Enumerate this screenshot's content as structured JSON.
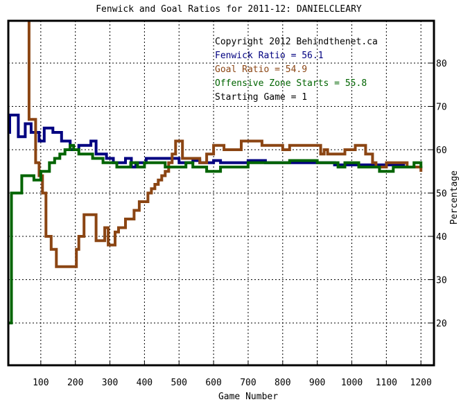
{
  "chart_data": {
    "type": "line",
    "title": "Fenwick and Goal Ratios for 2011-12: DANIELCLEARY",
    "xlabel": "Game Number",
    "ylabel": "Percentage",
    "xlim": [
      0,
      1230
    ],
    "ylim": [
      10,
      93
    ],
    "x_ticks": [
      100,
      200,
      300,
      400,
      500,
      600,
      700,
      800,
      900,
      1000,
      1100,
      1200
    ],
    "y_ticks": [
      20,
      30,
      40,
      50,
      60,
      70,
      80
    ],
    "grid": true,
    "legend_position": "top-right (inside plot)",
    "annotations": [
      {
        "text": "Copyright 2012 Behindthenet.ca",
        "color": "#000000"
      },
      {
        "text": "Fenwick Ratio = 56.1",
        "color": "#000080"
      },
      {
        "text": "Goal Ratio = 54.9",
        "color": "#8b4513"
      },
      {
        "text": "Offensive Zone Starts = 55.8",
        "color": "#006400"
      },
      {
        "text": "Starting Game = 1",
        "color": "#000000"
      }
    ],
    "series": [
      {
        "name": "Fenwick Ratio",
        "color": "#000080",
        "points": [
          [
            3,
            64
          ],
          [
            10,
            68
          ],
          [
            30,
            68
          ],
          [
            35,
            63
          ],
          [
            50,
            63
          ],
          [
            55,
            66
          ],
          [
            70,
            66
          ],
          [
            72,
            64
          ],
          [
            90,
            64
          ],
          [
            95,
            62
          ],
          [
            105,
            62
          ],
          [
            110,
            65
          ],
          [
            130,
            65
          ],
          [
            135,
            64
          ],
          [
            150,
            64
          ],
          [
            160,
            62
          ],
          [
            180,
            62
          ],
          [
            185,
            60
          ],
          [
            210,
            61
          ],
          [
            240,
            61
          ],
          [
            245,
            62
          ],
          [
            252,
            62
          ],
          [
            260,
            59
          ],
          [
            290,
            58
          ],
          [
            300,
            58
          ],
          [
            310,
            57
          ],
          [
            340,
            57
          ],
          [
            345,
            58
          ],
          [
            360,
            58
          ],
          [
            362,
            56
          ],
          [
            370,
            56
          ],
          [
            375,
            57
          ],
          [
            400,
            57
          ],
          [
            405,
            58
          ],
          [
            430,
            58
          ],
          [
            450,
            58
          ],
          [
            480,
            58
          ],
          [
            500,
            57
          ],
          [
            520,
            57
          ],
          [
            540,
            57.5
          ],
          [
            560,
            57
          ],
          [
            600,
            57.5
          ],
          [
            620,
            57
          ],
          [
            650,
            57
          ],
          [
            700,
            57.5
          ],
          [
            750,
            57
          ],
          [
            800,
            57
          ],
          [
            850,
            57
          ],
          [
            900,
            57
          ],
          [
            950,
            56.5
          ],
          [
            1000,
            56.5
          ],
          [
            1050,
            56.5
          ],
          [
            1100,
            56.5
          ],
          [
            1150,
            56
          ],
          [
            1200,
            56.1
          ]
        ]
      },
      {
        "name": "Goal Ratio",
        "color": "#8b4513",
        "points": [
          [
            65,
            95
          ],
          [
            66,
            67
          ],
          [
            80,
            67
          ],
          [
            85,
            57
          ],
          [
            90,
            57
          ],
          [
            95,
            54
          ],
          [
            100,
            54
          ],
          [
            105,
            50
          ],
          [
            110,
            50
          ],
          [
            115,
            40
          ],
          [
            125,
            40
          ],
          [
            130,
            37
          ],
          [
            140,
            37
          ],
          [
            145,
            33
          ],
          [
            200,
            33
          ],
          [
            203,
            37
          ],
          [
            210,
            40
          ],
          [
            220,
            40
          ],
          [
            225,
            45
          ],
          [
            255,
            45
          ],
          [
            260,
            39
          ],
          [
            275,
            39
          ],
          [
            285,
            42
          ],
          [
            290,
            42
          ],
          [
            295,
            38
          ],
          [
            310,
            38
          ],
          [
            315,
            41
          ],
          [
            320,
            41
          ],
          [
            325,
            42
          ],
          [
            340,
            42
          ],
          [
            345,
            44
          ],
          [
            360,
            44
          ],
          [
            370,
            46
          ],
          [
            380,
            46
          ],
          [
            385,
            48
          ],
          [
            400,
            48
          ],
          [
            410,
            50
          ],
          [
            420,
            51
          ],
          [
            430,
            52
          ],
          [
            440,
            53
          ],
          [
            450,
            54
          ],
          [
            460,
            55
          ],
          [
            470,
            57
          ],
          [
            480,
            59
          ],
          [
            490,
            62
          ],
          [
            500,
            62
          ],
          [
            510,
            58
          ],
          [
            540,
            58
          ],
          [
            560,
            57
          ],
          [
            580,
            59
          ],
          [
            600,
            61
          ],
          [
            620,
            61
          ],
          [
            630,
            60
          ],
          [
            660,
            60
          ],
          [
            680,
            62
          ],
          [
            720,
            62
          ],
          [
            740,
            61
          ],
          [
            760,
            61
          ],
          [
            790,
            61
          ],
          [
            800,
            60
          ],
          [
            820,
            61
          ],
          [
            900,
            61
          ],
          [
            910,
            59
          ],
          [
            920,
            60
          ],
          [
            930,
            59
          ],
          [
            960,
            59
          ],
          [
            980,
            60
          ],
          [
            1000,
            60
          ],
          [
            1010,
            61
          ],
          [
            1030,
            61
          ],
          [
            1040,
            59
          ],
          [
            1060,
            57
          ],
          [
            1070,
            56
          ],
          [
            1090,
            56
          ],
          [
            1100,
            57
          ],
          [
            1150,
            57
          ],
          [
            1160,
            56
          ],
          [
            1180,
            56
          ],
          [
            1200,
            54.9
          ]
        ]
      },
      {
        "name": "Offensive Zone Starts",
        "color": "#006400",
        "points": [
          [
            3,
            20
          ],
          [
            10,
            20
          ],
          [
            15,
            50
          ],
          [
            20,
            50
          ],
          [
            30,
            50
          ],
          [
            40,
            50
          ],
          [
            45,
            54
          ],
          [
            55,
            54
          ],
          [
            70,
            54
          ],
          [
            80,
            53
          ],
          [
            95,
            53
          ],
          [
            100,
            55
          ],
          [
            115,
            55
          ],
          [
            125,
            57
          ],
          [
            140,
            58
          ],
          [
            155,
            59
          ],
          [
            170,
            60
          ],
          [
            185,
            61
          ],
          [
            195,
            60
          ],
          [
            210,
            59
          ],
          [
            230,
            59
          ],
          [
            250,
            58
          ],
          [
            270,
            58
          ],
          [
            280,
            57
          ],
          [
            300,
            57
          ],
          [
            320,
            56
          ],
          [
            350,
            56
          ],
          [
            360,
            57
          ],
          [
            380,
            56
          ],
          [
            400,
            57
          ],
          [
            420,
            57
          ],
          [
            440,
            57
          ],
          [
            460,
            56
          ],
          [
            500,
            56
          ],
          [
            520,
            57
          ],
          [
            540,
            56
          ],
          [
            560,
            56
          ],
          [
            580,
            55
          ],
          [
            600,
            55
          ],
          [
            620,
            56
          ],
          [
            640,
            56
          ],
          [
            660,
            56
          ],
          [
            700,
            57
          ],
          [
            720,
            57
          ],
          [
            760,
            57
          ],
          [
            800,
            57
          ],
          [
            820,
            57.5
          ],
          [
            860,
            57.5
          ],
          [
            900,
            57
          ],
          [
            940,
            57
          ],
          [
            960,
            56
          ],
          [
            980,
            57
          ],
          [
            1000,
            57
          ],
          [
            1020,
            56
          ],
          [
            1040,
            56
          ],
          [
            1060,
            56
          ],
          [
            1080,
            55
          ],
          [
            1100,
            55
          ],
          [
            1120,
            56
          ],
          [
            1140,
            56
          ],
          [
            1160,
            56
          ],
          [
            1180,
            57
          ],
          [
            1200,
            55.8
          ]
        ]
      }
    ]
  }
}
